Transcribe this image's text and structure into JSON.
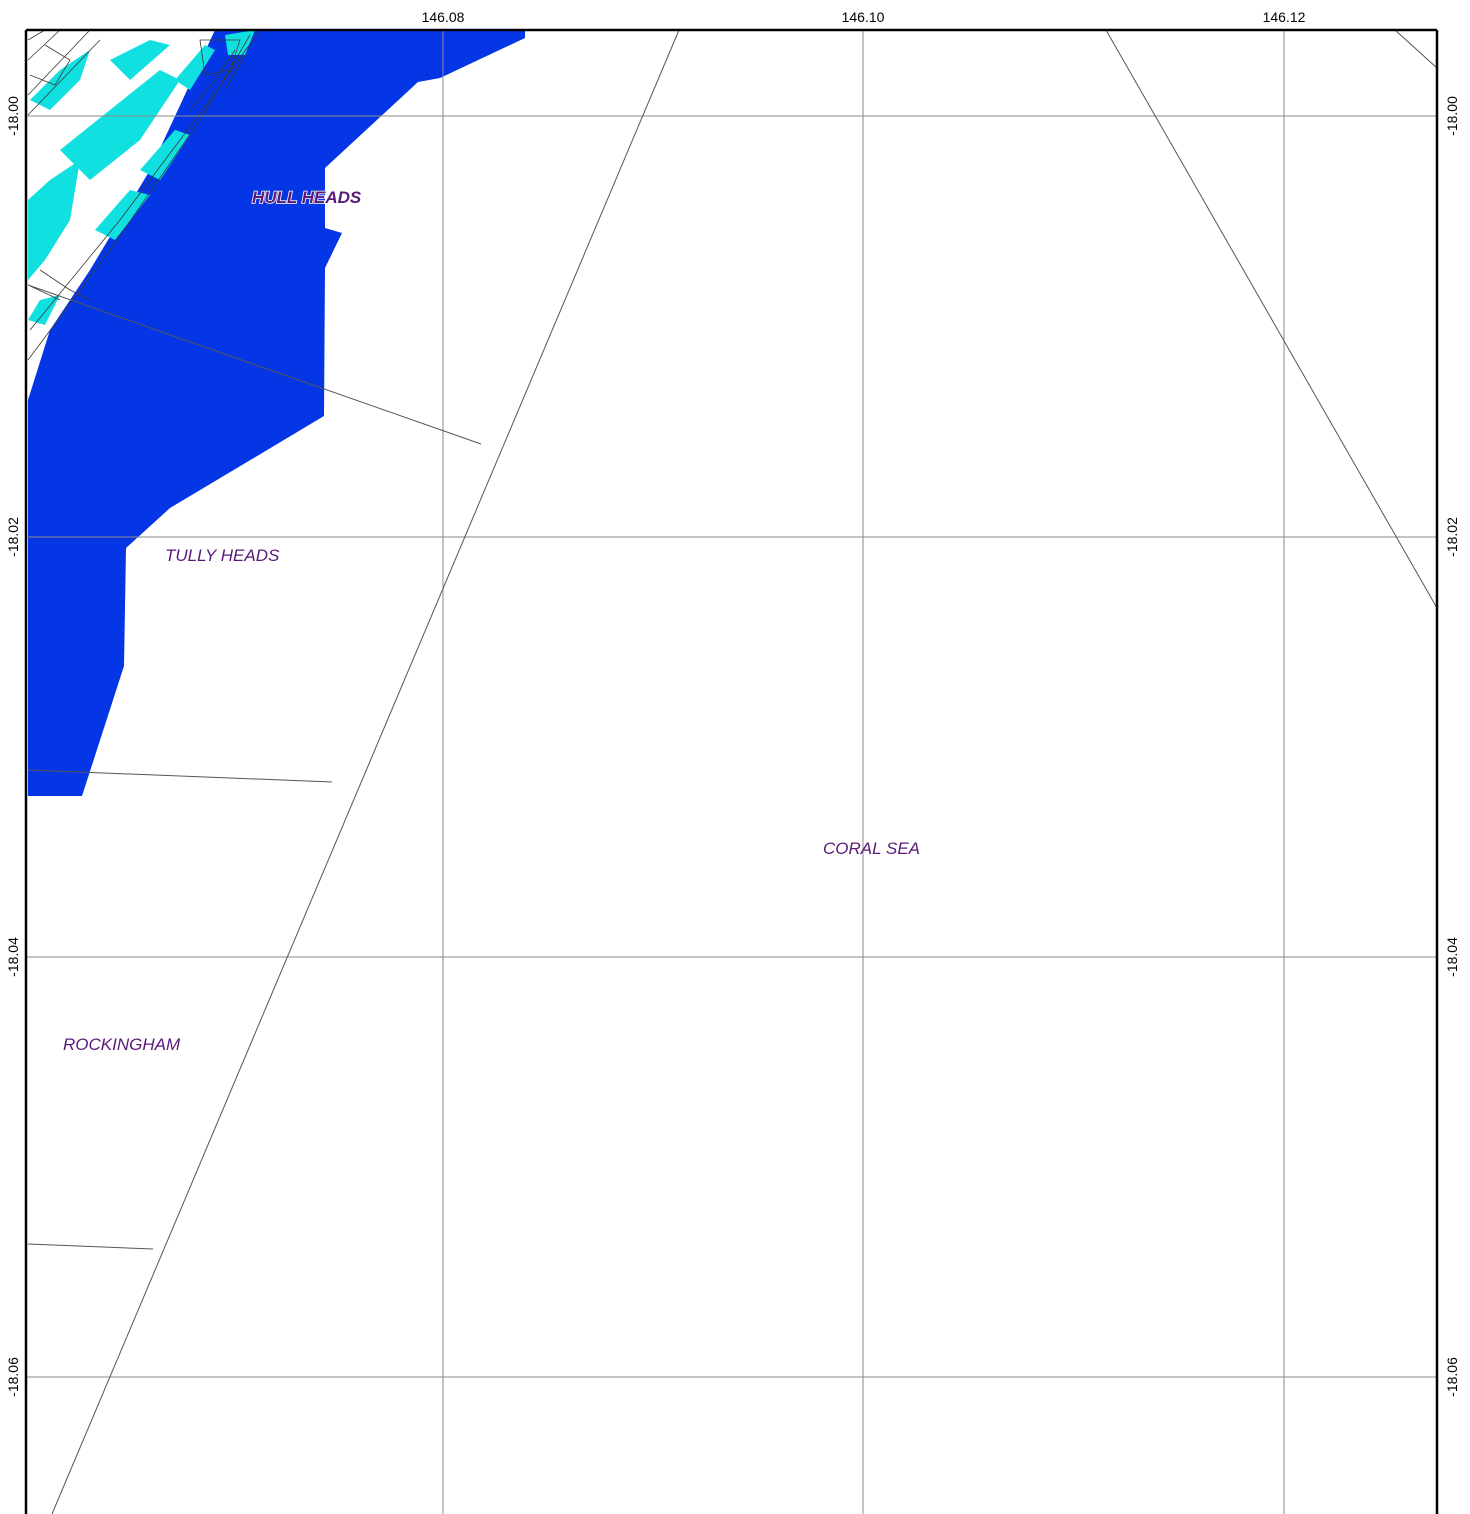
{
  "map": {
    "colors": {
      "water_zone": "#0536e6",
      "shallow_zone": "#10e0e0",
      "grid": "#8a8a8a",
      "boundary": "#555555",
      "label": "#5a1a78",
      "frame": "#000000"
    },
    "longitude_ticks": [
      "146.08",
      "146.10",
      "146.12"
    ],
    "latitude_ticks": [
      "-18.00",
      "-18.02",
      "-18.04",
      "-18.06"
    ],
    "places": {
      "hull_heads": "HULL HEADS",
      "tully_heads": "TULLY HEADS",
      "coral_sea": "CORAL SEA",
      "rockingham": "ROCKINGHAM"
    }
  }
}
